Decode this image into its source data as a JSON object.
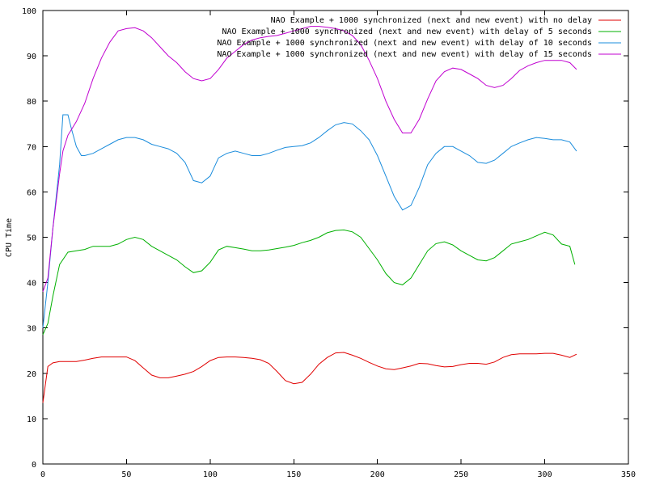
{
  "chart_data": {
    "type": "line",
    "title": "",
    "xlabel": "",
    "ylabel": "CPU Time",
    "xlim": [
      0,
      350
    ],
    "ylim": [
      0,
      100
    ],
    "x_ticks": [
      0,
      50,
      100,
      150,
      200,
      250,
      300,
      350
    ],
    "y_ticks": [
      0,
      10,
      20,
      30,
      40,
      50,
      60,
      70,
      80,
      90,
      100
    ],
    "grid": false,
    "legend_position": "top-right",
    "series": [
      {
        "name": "NAO Example + 1000 synchronized (next and new event) with no delay",
        "color": "#e00000",
        "x": [
          0,
          3,
          6,
          10,
          15,
          20,
          25,
          30,
          35,
          40,
          45,
          50,
          55,
          60,
          65,
          70,
          75,
          80,
          85,
          90,
          95,
          100,
          105,
          110,
          115,
          120,
          125,
          130,
          135,
          140,
          145,
          150,
          155,
          160,
          165,
          170,
          175,
          180,
          185,
          190,
          195,
          200,
          205,
          210,
          215,
          220,
          225,
          230,
          235,
          240,
          245,
          250,
          255,
          260,
          265,
          270,
          275,
          280,
          285,
          290,
          295,
          300,
          305,
          310,
          315,
          319
        ],
        "values": [
          13.5,
          21.5,
          22.3,
          22.6,
          22.6,
          22.6,
          22.9,
          23.3,
          23.6,
          23.6,
          23.6,
          23.6,
          22.8,
          21.2,
          19.6,
          19.0,
          19.0,
          19.4,
          19.8,
          20.4,
          21.5,
          22.8,
          23.5,
          23.6,
          23.6,
          23.5,
          23.3,
          23.0,
          22.2,
          20.4,
          18.4,
          17.7,
          18.0,
          19.8,
          22.0,
          23.5,
          24.5,
          24.6,
          24.0,
          23.3,
          22.4,
          21.6,
          21.0,
          20.8,
          21.2,
          21.6,
          22.2,
          22.1,
          21.7,
          21.4,
          21.5,
          21.9,
          22.2,
          22.2,
          22.0,
          22.5,
          23.5,
          24.1,
          24.3,
          24.3,
          24.3,
          24.4,
          24.4,
          24.0,
          23.5,
          24.2
        ]
      },
      {
        "name": "NAO Example + 1000 synchronized (next and new event) with delay of 5 seconds",
        "color": "#00b000",
        "x": [
          0,
          3,
          6,
          10,
          15,
          20,
          25,
          30,
          35,
          40,
          45,
          50,
          55,
          60,
          65,
          70,
          75,
          80,
          85,
          90,
          95,
          100,
          105,
          110,
          115,
          120,
          125,
          130,
          135,
          140,
          145,
          150,
          155,
          160,
          165,
          170,
          175,
          180,
          185,
          190,
          195,
          200,
          205,
          210,
          215,
          220,
          225,
          230,
          235,
          240,
          245,
          250,
          255,
          260,
          265,
          270,
          275,
          280,
          285,
          290,
          295,
          300,
          305,
          310,
          315,
          318
        ],
        "values": [
          28.5,
          31.0,
          37.0,
          44.0,
          46.7,
          47.0,
          47.3,
          48.0,
          48.0,
          48.0,
          48.5,
          49.5,
          50.0,
          49.5,
          48.0,
          47.0,
          46.0,
          45.0,
          43.5,
          42.2,
          42.6,
          44.5,
          47.2,
          48.0,
          47.7,
          47.4,
          47.0,
          47.0,
          47.2,
          47.5,
          47.8,
          48.2,
          48.8,
          49.3,
          50.0,
          51.0,
          51.5,
          51.6,
          51.2,
          50.0,
          47.5,
          45.0,
          42.0,
          40.0,
          39.5,
          41.0,
          44.0,
          47.0,
          48.6,
          49.0,
          48.3,
          47.0,
          46.0,
          45.0,
          44.8,
          45.5,
          47.0,
          48.5,
          49.0,
          49.5,
          50.3,
          51.1,
          50.5,
          48.5,
          48.0,
          44.0
        ]
      },
      {
        "name": "NAO Example + 1000 synchronized (next and new event) with delay of 10 seconds",
        "color": "#1a8cdc",
        "x": [
          0,
          3,
          6,
          10,
          12,
          15,
          17,
          20,
          23,
          25,
          30,
          35,
          40,
          45,
          50,
          55,
          60,
          65,
          70,
          75,
          80,
          85,
          90,
          95,
          100,
          105,
          110,
          115,
          120,
          125,
          130,
          135,
          140,
          145,
          150,
          155,
          160,
          165,
          170,
          175,
          180,
          185,
          190,
          195,
          200,
          205,
          210,
          215,
          220,
          225,
          230,
          235,
          240,
          245,
          250,
          255,
          260,
          265,
          270,
          275,
          280,
          285,
          290,
          295,
          300,
          305,
          310,
          315,
          319
        ],
        "values": [
          30.0,
          40.0,
          52.0,
          66.0,
          77.0,
          77.0,
          74.0,
          70.0,
          68.0,
          68.0,
          68.5,
          69.5,
          70.5,
          71.5,
          72.0,
          72.0,
          71.5,
          70.5,
          70.0,
          69.5,
          68.5,
          66.5,
          62.5,
          62.0,
          63.5,
          67.5,
          68.5,
          69.0,
          68.5,
          68.0,
          68.0,
          68.5,
          69.2,
          69.8,
          70.0,
          70.2,
          70.8,
          72.0,
          73.5,
          74.8,
          75.3,
          75.0,
          73.5,
          71.5,
          68.0,
          63.5,
          59.0,
          56.0,
          57.0,
          61.0,
          66.0,
          68.5,
          70.0,
          70.0,
          69.0,
          68.0,
          66.5,
          66.3,
          67.0,
          68.5,
          70.0,
          70.8,
          71.5,
          72.0,
          71.8,
          71.5,
          71.5,
          71.0,
          69.0
        ]
      },
      {
        "name": "NAO Example + 1000 synchronized (next and new event) with delay of 15 seconds",
        "color": "#c000d0",
        "x": [
          0,
          3,
          6,
          10,
          12,
          15,
          20,
          25,
          30,
          35,
          40,
          45,
          50,
          55,
          60,
          65,
          70,
          75,
          80,
          85,
          90,
          95,
          100,
          105,
          110,
          115,
          120,
          125,
          130,
          135,
          140,
          145,
          150,
          155,
          160,
          165,
          170,
          175,
          180,
          185,
          190,
          195,
          200,
          205,
          210,
          215,
          220,
          225,
          230,
          235,
          240,
          245,
          250,
          255,
          260,
          265,
          270,
          275,
          280,
          285,
          290,
          295,
          300,
          305,
          310,
          315,
          319
        ],
        "values": [
          38.0,
          41.0,
          52.0,
          64.0,
          69.0,
          72.5,
          75.5,
          79.5,
          85.0,
          89.5,
          93.0,
          95.5,
          96.0,
          96.2,
          95.5,
          94.0,
          92.0,
          90.0,
          88.5,
          86.5,
          85.0,
          84.5,
          85.0,
          87.0,
          89.5,
          91.0,
          92.5,
          93.5,
          94.0,
          94.3,
          94.5,
          95.0,
          95.5,
          96.0,
          96.5,
          96.5,
          96.3,
          96.0,
          95.5,
          94.5,
          92.5,
          89.0,
          85.0,
          80.0,
          76.0,
          73.0,
          73.0,
          76.0,
          80.5,
          84.5,
          86.5,
          87.3,
          87.0,
          86.0,
          85.0,
          83.5,
          83.0,
          83.5,
          85.0,
          86.8,
          87.8,
          88.5,
          89.0,
          89.0,
          89.0,
          88.5,
          87.0
        ]
      }
    ]
  }
}
